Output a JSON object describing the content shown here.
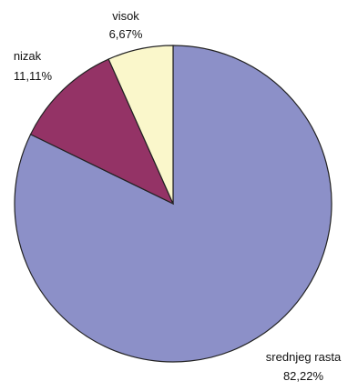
{
  "chart_data": {
    "type": "pie",
    "slices": [
      {
        "name": "srednjeg rasta",
        "value": 82.22,
        "label": "82,22%",
        "color": "#8c90c8"
      },
      {
        "name": "nizak",
        "value": 11.11,
        "label": "11,11%",
        "color": "#943366"
      },
      {
        "name": "visok",
        "value": 6.67,
        "label": "6,67%",
        "color": "#faf7cb"
      }
    ],
    "slice_order": "clockwise-from-top",
    "start_angle_deg": 0,
    "outline_color": "#222222"
  }
}
